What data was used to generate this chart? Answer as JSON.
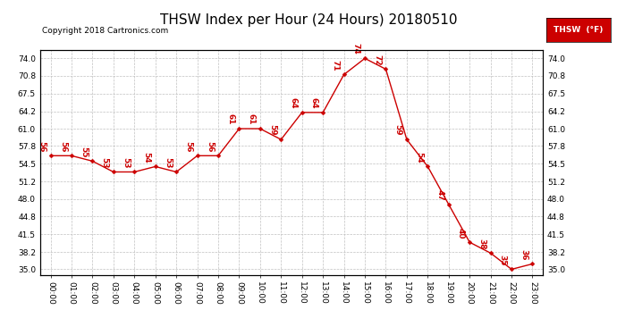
{
  "title": "THSW Index per Hour (24 Hours) 20180510",
  "copyright": "Copyright 2018 Cartronics.com",
  "legend_label": "THSW  (°F)",
  "x_labels": [
    "00:00",
    "01:00",
    "02:00",
    "03:00",
    "04:00",
    "05:00",
    "06:00",
    "07:00",
    "08:00",
    "09:00",
    "10:00",
    "11:00",
    "12:00",
    "13:00",
    "14:00",
    "15:00",
    "16:00",
    "17:00",
    "18:00",
    "19:00",
    "20:00",
    "21:00",
    "22:00",
    "23:00"
  ],
  "y_values": [
    56,
    56,
    55,
    53,
    53,
    54,
    53,
    56,
    56,
    61,
    61,
    59,
    64,
    64,
    71,
    74,
    72,
    59,
    54,
    47,
    40,
    38,
    35,
    36
  ],
  "y_labels": [
    "35.0",
    "38.2",
    "41.5",
    "44.8",
    "48.0",
    "51.2",
    "54.5",
    "57.8",
    "61.0",
    "64.2",
    "67.5",
    "70.8",
    "74.0"
  ],
  "y_ticks": [
    35.0,
    38.2,
    41.5,
    44.8,
    48.0,
    51.2,
    54.5,
    57.8,
    61.0,
    64.2,
    67.5,
    70.8,
    74.0
  ],
  "ylim": [
    34.0,
    75.5
  ],
  "xlim": [
    -0.5,
    23.5
  ],
  "line_color": "#cc0000",
  "marker_color": "#cc0000",
  "bg_color": "#ffffff",
  "grid_color": "#c0c0c0",
  "title_fontsize": 11,
  "label_fontsize": 6.5,
  "annot_fontsize": 6.5,
  "copyright_fontsize": 6.5
}
